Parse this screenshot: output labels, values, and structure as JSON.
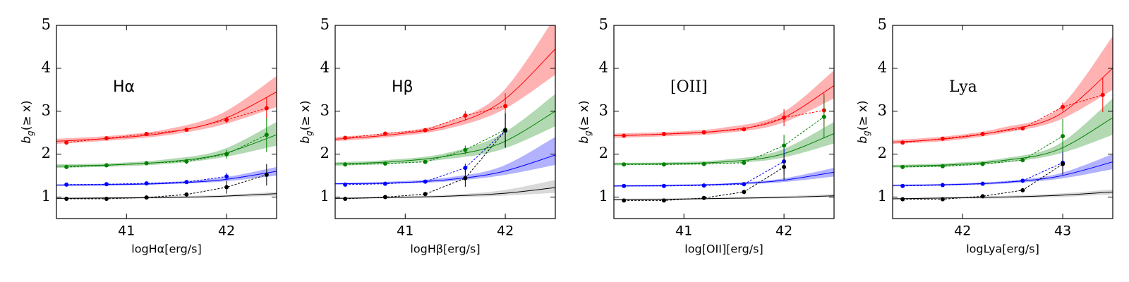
{
  "chart_data": [
    {
      "type": "line",
      "annotation": "Hα",
      "xlabel": "logHα[erg/s]",
      "ylabel": "bg(≥ x)",
      "xlim": [
        40.3,
        42.5
      ],
      "xticks": [
        41,
        42
      ],
      "ylim": [
        0.5,
        5
      ],
      "yticks": [
        1,
        2,
        3,
        4,
        5
      ],
      "x": [
        40.4,
        40.8,
        41.2,
        41.6,
        42.0,
        42.4
      ],
      "fit_x": [
        40.3,
        40.85,
        41.4,
        41.95,
        42.5
      ],
      "series": [
        {
          "color": "#ff0000",
          "values": [
            2.27,
            2.37,
            2.47,
            2.57,
            2.8,
            3.07
          ],
          "errors": [
            0.03,
            0.02,
            0.02,
            0.03,
            0.08,
            0.25
          ],
          "fit": [
            2.3,
            2.37,
            2.5,
            2.8,
            3.45
          ],
          "fit_lower": [
            2.24,
            2.32,
            2.44,
            2.68,
            3.1
          ],
          "fit_upper": [
            2.36,
            2.43,
            2.58,
            2.95,
            3.82
          ]
        },
        {
          "color": "#008000",
          "values": [
            1.7,
            1.74,
            1.79,
            1.83,
            2.0,
            2.45
          ],
          "errors": [
            0.03,
            0.02,
            0.02,
            0.06,
            0.1,
            0.4
          ],
          "fit": [
            1.72,
            1.75,
            1.82,
            2.0,
            2.45
          ],
          "fit_lower": [
            1.68,
            1.71,
            1.77,
            1.92,
            2.2
          ],
          "fit_upper": [
            1.76,
            1.79,
            1.88,
            2.1,
            2.75
          ]
        },
        {
          "color": "#0000ff",
          "values": [
            1.29,
            1.3,
            1.32,
            1.35,
            1.48,
            null
          ],
          "errors": [
            0.02,
            0.02,
            0.02,
            0.03,
            0.08,
            null
          ],
          "fit": [
            1.28,
            1.29,
            1.32,
            1.4,
            1.6
          ],
          "fit_lower": [
            1.26,
            1.27,
            1.3,
            1.36,
            1.5
          ],
          "fit_upper": [
            1.3,
            1.31,
            1.35,
            1.45,
            1.7
          ]
        },
        {
          "color": "#000000",
          "values": [
            0.96,
            0.96,
            0.99,
            1.06,
            1.23,
            1.52
          ],
          "errors": [
            0.02,
            0.02,
            0.02,
            0.03,
            0.15,
            0.25
          ],
          "fit": [
            0.97,
            0.98,
            0.99,
            1.02,
            1.08
          ],
          "fit_lower": [
            0.95,
            0.96,
            0.97,
            0.99,
            1.03
          ],
          "fit_upper": [
            0.99,
            1.0,
            1.02,
            1.05,
            1.12
          ]
        }
      ]
    },
    {
      "type": "line",
      "annotation": "Hβ",
      "xlabel": "logHβ[erg/s]",
      "ylabel": "bg(≥ x)",
      "xlim": [
        40.3,
        42.5
      ],
      "xticks": [
        41,
        42
      ],
      "ylim": [
        0.5,
        5
      ],
      "yticks": [
        1,
        2,
        3,
        4,
        5
      ],
      "x": [
        40.4,
        40.8,
        41.2,
        41.6,
        42.0
      ],
      "fit_x": [
        40.3,
        40.85,
        41.4,
        41.95,
        42.5
      ],
      "series": [
        {
          "color": "#ff0000",
          "values": [
            2.38,
            2.48,
            2.56,
            2.9,
            3.12
          ],
          "errors": [
            0.03,
            0.02,
            0.03,
            0.1,
            0.3
          ],
          "fit": [
            2.35,
            2.45,
            2.65,
            3.2,
            4.45
          ],
          "fit_lower": [
            2.3,
            2.4,
            2.58,
            3.0,
            3.85
          ],
          "fit_upper": [
            2.4,
            2.5,
            2.73,
            3.4,
            5.2
          ]
        },
        {
          "color": "#008000",
          "values": [
            1.76,
            1.78,
            1.82,
            2.1,
            2.57
          ],
          "errors": [
            0.02,
            0.02,
            0.04,
            0.1,
            0.4
          ],
          "fit": [
            1.77,
            1.82,
            1.95,
            2.25,
            3.0
          ],
          "fit_lower": [
            1.73,
            1.77,
            1.88,
            2.1,
            2.65
          ],
          "fit_upper": [
            1.81,
            1.87,
            2.02,
            2.45,
            3.4
          ]
        },
        {
          "color": "#0000ff",
          "values": [
            1.29,
            1.31,
            1.36,
            1.68,
            2.55
          ],
          "errors": [
            0.02,
            0.02,
            0.04,
            0.1,
            0.4
          ],
          "fit": [
            1.31,
            1.33,
            1.4,
            1.58,
            1.98
          ],
          "fit_lower": [
            1.29,
            1.31,
            1.36,
            1.5,
            1.75
          ],
          "fit_upper": [
            1.33,
            1.36,
            1.45,
            1.7,
            2.4
          ]
        },
        {
          "color": "#000000",
          "values": [
            0.96,
            1.0,
            1.07,
            1.44,
            2.55
          ],
          "errors": [
            0.02,
            0.02,
            0.03,
            0.2,
            0.4
          ],
          "fit": [
            0.97,
            0.99,
            1.02,
            1.08,
            1.22
          ],
          "fit_lower": [
            0.95,
            0.97,
            0.99,
            1.03,
            1.1
          ],
          "fit_upper": [
            0.99,
            1.01,
            1.05,
            1.15,
            1.4
          ]
        }
      ]
    },
    {
      "type": "line",
      "annotation": "[OII]",
      "xlabel": "log[OII][erg/s]",
      "ylabel": "bg(≥ x)",
      "xlim": [
        40.3,
        42.5
      ],
      "xticks": [
        41,
        42
      ],
      "ylim": [
        0.5,
        5
      ],
      "yticks": [
        1,
        2,
        3,
        4,
        5
      ],
      "x": [
        40.4,
        40.8,
        41.2,
        41.6,
        42.0,
        42.4
      ],
      "fit_x": [
        40.3,
        40.85,
        41.4,
        41.95,
        42.5
      ],
      "series": [
        {
          "color": "#ff0000",
          "values": [
            2.43,
            2.47,
            2.51,
            2.58,
            2.85,
            3.02
          ],
          "errors": [
            0.02,
            0.02,
            0.02,
            0.05,
            0.2,
            0.4
          ],
          "fit": [
            2.43,
            2.47,
            2.55,
            2.8,
            3.6
          ],
          "fit_lower": [
            2.38,
            2.42,
            2.49,
            2.7,
            3.3
          ],
          "fit_upper": [
            2.48,
            2.52,
            2.62,
            2.92,
            3.95
          ]
        },
        {
          "color": "#008000",
          "values": [
            1.76,
            1.76,
            1.77,
            1.8,
            2.2,
            2.87
          ],
          "errors": [
            0.02,
            0.02,
            0.02,
            0.05,
            0.25,
            0.5
          ],
          "fit": [
            1.77,
            1.78,
            1.82,
            1.98,
            2.48
          ],
          "fit_lower": [
            1.74,
            1.75,
            1.78,
            1.9,
            2.25
          ],
          "fit_upper": [
            1.8,
            1.81,
            1.87,
            2.08,
            2.75
          ]
        },
        {
          "color": "#0000ff",
          "values": [
            1.26,
            1.26,
            1.27,
            1.3,
            1.83,
            null
          ],
          "errors": [
            0.02,
            0.02,
            0.02,
            0.05,
            0.3,
            null
          ],
          "fit": [
            1.26,
            1.27,
            1.3,
            1.38,
            1.58
          ],
          "fit_lower": [
            1.24,
            1.25,
            1.28,
            1.34,
            1.48
          ],
          "fit_upper": [
            1.28,
            1.29,
            1.32,
            1.42,
            1.68
          ]
        },
        {
          "color": "#000000",
          "values": [
            0.92,
            0.92,
            0.98,
            1.12,
            1.7,
            null
          ],
          "errors": [
            0.02,
            0.02,
            0.02,
            0.05,
            0.3,
            null
          ],
          "fit": [
            0.94,
            0.95,
            0.97,
            0.99,
            1.03
          ],
          "fit_lower": [
            0.92,
            0.93,
            0.95,
            0.97,
            1.0
          ],
          "fit_upper": [
            0.96,
            0.97,
            0.99,
            1.02,
            1.07
          ]
        }
      ]
    },
    {
      "type": "line",
      "annotation": "Lya",
      "xlabel": "logLya[erg/s]",
      "ylabel": "bg(≥ x)",
      "xlim": [
        41.3,
        43.5
      ],
      "xticks": [
        42,
        43
      ],
      "ylim": [
        0.5,
        5
      ],
      "yticks": [
        1,
        2,
        3,
        4,
        5
      ],
      "x": [
        41.4,
        41.8,
        42.2,
        42.6,
        43.0,
        43.4
      ],
      "fit_x": [
        41.3,
        41.85,
        42.4,
        42.95,
        43.5
      ],
      "series": [
        {
          "color": "#ff0000",
          "values": [
            2.27,
            2.36,
            2.47,
            2.6,
            3.1,
            3.38
          ],
          "errors": [
            0.02,
            0.02,
            0.02,
            0.03,
            0.1,
            0.4
          ],
          "fit": [
            2.28,
            2.36,
            2.55,
            2.9,
            4.0
          ],
          "fit_lower": [
            2.24,
            2.31,
            2.49,
            2.78,
            3.5
          ],
          "fit_upper": [
            2.33,
            2.42,
            2.62,
            3.05,
            4.75
          ]
        },
        {
          "color": "#008000",
          "values": [
            1.7,
            1.72,
            1.77,
            1.86,
            2.42,
            null
          ],
          "errors": [
            0.02,
            0.02,
            0.02,
            0.05,
            0.4,
            null
          ],
          "fit": [
            1.72,
            1.75,
            1.85,
            2.1,
            2.85
          ],
          "fit_lower": [
            1.69,
            1.71,
            1.8,
            2.0,
            2.45
          ],
          "fit_upper": [
            1.75,
            1.79,
            1.9,
            2.22,
            3.3
          ]
        },
        {
          "color": "#0000ff",
          "values": [
            1.26,
            1.28,
            1.31,
            1.38,
            1.8,
            null
          ],
          "errors": [
            0.02,
            0.02,
            0.02,
            0.04,
            0.25,
            null
          ],
          "fit": [
            1.27,
            1.29,
            1.34,
            1.48,
            1.82
          ],
          "fit_lower": [
            1.25,
            1.27,
            1.31,
            1.42,
            1.65
          ],
          "fit_upper": [
            1.29,
            1.31,
            1.37,
            1.54,
            2.0
          ]
        },
        {
          "color": "#000000",
          "values": [
            0.95,
            0.95,
            1.02,
            1.16,
            1.77,
            null
          ],
          "errors": [
            0.02,
            0.02,
            0.02,
            0.05,
            0.25,
            null
          ],
          "fit": [
            0.96,
            0.98,
            1.0,
            1.04,
            1.12
          ],
          "fit_lower": [
            0.94,
            0.96,
            0.97,
            1.0,
            1.06
          ],
          "fit_upper": [
            0.98,
            1.0,
            1.03,
            1.08,
            1.18
          ]
        }
      ]
    }
  ]
}
